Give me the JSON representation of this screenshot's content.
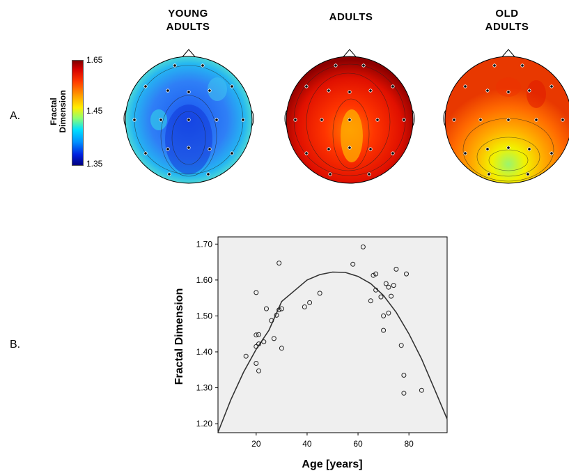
{
  "panel_a": {
    "label": "A.",
    "colorbar": {
      "title_line1": "Fractal",
      "title_line2": "Dimension",
      "max_label": "1.65",
      "mid_label": "1.45",
      "min_label": "1.35"
    },
    "maps": [
      {
        "title_line1": "YOUNG",
        "title_line2": "ADULTS"
      },
      {
        "title_line1": "",
        "title_line2": "ADULTS"
      },
      {
        "title_line1": "OLD",
        "title_line2": "ADULTS"
      }
    ]
  },
  "panel_b": {
    "label": "B."
  },
  "chart_data": {
    "type": "scatter",
    "xlabel": "Age [years]",
    "ylabel": "Fractal Dimension",
    "xlim": [
      5,
      95
    ],
    "ylim": [
      1.175,
      1.72
    ],
    "xticks": [
      20,
      40,
      60,
      80
    ],
    "yticks": [
      1.2,
      1.3,
      1.4,
      1.5,
      1.6,
      1.7
    ],
    "ytick_labels": [
      "1.20",
      "1.30",
      "1.40",
      "1.50",
      "1.60",
      "1.70"
    ],
    "grid": false,
    "points": [
      [
        16,
        1.388
      ],
      [
        20,
        1.565
      ],
      [
        20,
        1.447
      ],
      [
        20,
        1.415
      ],
      [
        20,
        1.368
      ],
      [
        21,
        1.448
      ],
      [
        21,
        1.422
      ],
      [
        21,
        1.347
      ],
      [
        23,
        1.428
      ],
      [
        24,
        1.52
      ],
      [
        26,
        1.487
      ],
      [
        27,
        1.437
      ],
      [
        28,
        1.502
      ],
      [
        29,
        1.517
      ],
      [
        29,
        1.647
      ],
      [
        30,
        1.52
      ],
      [
        30,
        1.41
      ],
      [
        39,
        1.525
      ],
      [
        41,
        1.537
      ],
      [
        45,
        1.563
      ],
      [
        58,
        1.644
      ],
      [
        62,
        1.692
      ],
      [
        65,
        1.542
      ],
      [
        66,
        1.613
      ],
      [
        67,
        1.617
      ],
      [
        67,
        1.572
      ],
      [
        69,
        1.553
      ],
      [
        70,
        1.5
      ],
      [
        70,
        1.46
      ],
      [
        71,
        1.59
      ],
      [
        72,
        1.58
      ],
      [
        72,
        1.508
      ],
      [
        73,
        1.555
      ],
      [
        74,
        1.585
      ],
      [
        75,
        1.63
      ],
      [
        77,
        1.418
      ],
      [
        78,
        1.335
      ],
      [
        78,
        1.285
      ],
      [
        79,
        1.617
      ],
      [
        85,
        1.293
      ]
    ],
    "fit": {
      "type": "quadratic",
      "x": [
        5,
        10,
        15,
        20,
        25,
        30,
        35,
        40,
        45,
        50,
        55,
        60,
        65,
        70,
        75,
        80,
        85,
        90,
        95
      ],
      "y": [
        1.176,
        1.266,
        1.343,
        1.407,
        1.46,
        1.54,
        1.57,
        1.6,
        1.615,
        1.622,
        1.621,
        1.61,
        1.59,
        1.557,
        1.51,
        1.45,
        1.38,
        1.297,
        1.213
      ]
    }
  }
}
